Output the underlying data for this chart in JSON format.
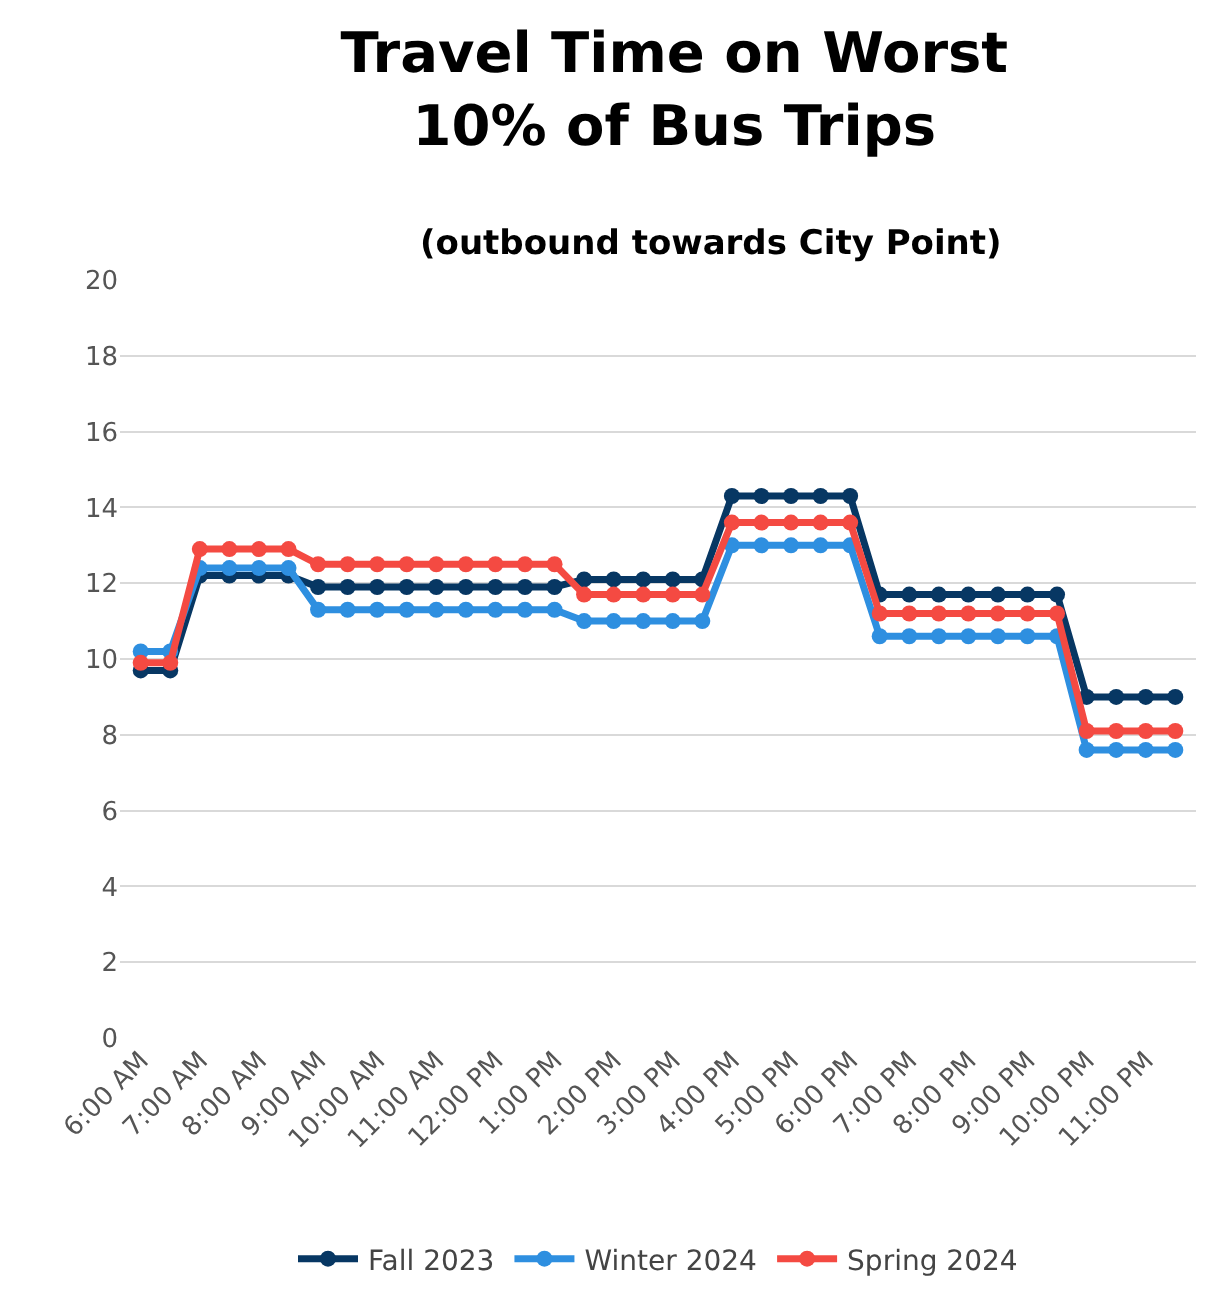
{
  "chart_data": {
    "type": "line",
    "title": "Travel Time on Worst 10% of Bus Trips",
    "subtitle": "(outbound towards City Point)",
    "categories": [
      "6:00 AM",
      null,
      "7:00 AM",
      null,
      "8:00 AM",
      null,
      "9:00 AM",
      null,
      "10:00 AM",
      null,
      "11:00 AM",
      null,
      "12:00 PM",
      null,
      "1:00 PM",
      null,
      "2:00 PM",
      null,
      "3:00 PM",
      null,
      "4:00 PM",
      null,
      "5:00 PM",
      null,
      "6:00 PM",
      null,
      "7:00 PM",
      null,
      "8:00 PM",
      null,
      "9:00 PM",
      null,
      "10:00 PM",
      null,
      "11:00 PM",
      null
    ],
    "series": [
      {
        "name": "Fall 2023",
        "color": "#073763",
        "values": [
          9.7,
          9.7,
          12.2,
          12.2,
          12.2,
          12.2,
          11.9,
          11.9,
          11.9,
          11.9,
          11.9,
          11.9,
          11.9,
          11.9,
          11.9,
          12.1,
          12.1,
          12.1,
          12.1,
          12.1,
          14.3,
          14.3,
          14.3,
          14.3,
          14.3,
          11.7,
          11.7,
          11.7,
          11.7,
          11.7,
          11.7,
          11.7,
          9.0,
          9.0,
          9.0,
          9.0
        ]
      },
      {
        "name": "Winter 2024",
        "color": "#2e8fe0",
        "values": [
          10.2,
          10.2,
          12.4,
          12.4,
          12.4,
          12.4,
          11.3,
          11.3,
          11.3,
          11.3,
          11.3,
          11.3,
          11.3,
          11.3,
          11.3,
          11.0,
          11.0,
          11.0,
          11.0,
          11.0,
          13.0,
          13.0,
          13.0,
          13.0,
          13.0,
          10.6,
          10.6,
          10.6,
          10.6,
          10.6,
          10.6,
          10.6,
          7.6,
          7.6,
          7.6,
          7.6
        ]
      },
      {
        "name": "Spring 2024",
        "color": "#f44a42",
        "values": [
          9.9,
          9.9,
          12.9,
          12.9,
          12.9,
          12.9,
          12.5,
          12.5,
          12.5,
          12.5,
          12.5,
          12.5,
          12.5,
          12.5,
          12.5,
          11.7,
          11.7,
          11.7,
          11.7,
          11.7,
          13.6,
          13.6,
          13.6,
          13.6,
          13.6,
          11.2,
          11.2,
          11.2,
          11.2,
          11.2,
          11.2,
          11.2,
          8.1,
          8.1,
          8.1,
          8.1
        ]
      }
    ],
    "ylim": [
      0,
      20
    ],
    "yticks": [
      0,
      2,
      4,
      6,
      8,
      10,
      12,
      14,
      16,
      18,
      20
    ],
    "grid": "y",
    "legend": "bottom",
    "marker": "circle",
    "line_style": "solid"
  }
}
